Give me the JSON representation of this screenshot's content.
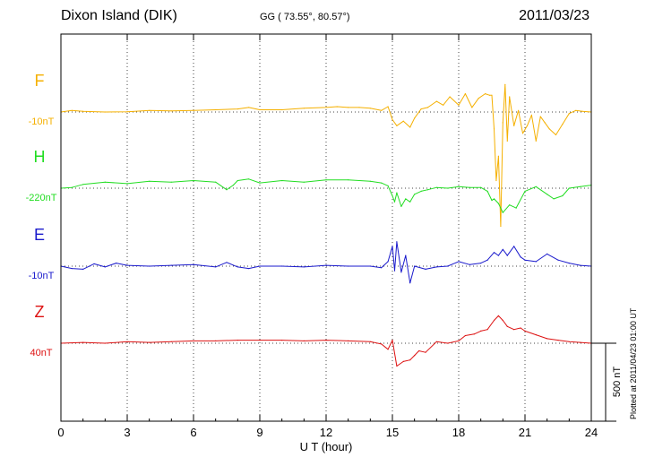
{
  "header": {
    "station": "Dixon Island (DIK)",
    "coords": "GG ( 73.55°,  80.57°)",
    "date": "2011/03/23"
  },
  "footer": {
    "plotted": "Plotted at 2011/04/23 01:00 UT"
  },
  "chart_data": {
    "type": "line",
    "title": "Dixon Island (DIK)",
    "xlabel": "U T (hour)",
    "xlim": [
      0,
      24
    ],
    "xticks": [
      "0",
      "3",
      "6",
      "9",
      "12",
      "15",
      "18",
      "21",
      "24"
    ],
    "grid": true,
    "scale_bar": "500 nT",
    "colors": {
      "F": "#f5b000",
      "H": "#22dd22",
      "E": "#1a1acc",
      "Z": "#dd1111"
    },
    "series": [
      {
        "name": "F",
        "baseline_label": "-10nT",
        "x": [
          0,
          0.5,
          1,
          2,
          3,
          4,
          5,
          6,
          7,
          8,
          8.5,
          9,
          10,
          11,
          12,
          12.5,
          13,
          13.5,
          14,
          14.5,
          14.8,
          15,
          15.2,
          15.5,
          15.8,
          16,
          16.3,
          16.6,
          17,
          17.3,
          17.6,
          18,
          18.3,
          18.6,
          18.9,
          19.2,
          19.4,
          19.5,
          19.6,
          19.7,
          19.8,
          19.9,
          20,
          20.1,
          20.2,
          20.3,
          20.5,
          20.7,
          20.9,
          21.1,
          21.3,
          21.5,
          21.7,
          21.9,
          22.1,
          22.4,
          22.7,
          23,
          23.3,
          23.6,
          24
        ],
        "values": [
          -10,
          0,
          -5,
          -10,
          -8,
          0,
          -3,
          0,
          5,
          10,
          20,
          5,
          5,
          15,
          20,
          25,
          20,
          20,
          15,
          0,
          25,
          -60,
          -100,
          -70,
          -110,
          -50,
          10,
          20,
          60,
          35,
          90,
          35,
          110,
          20,
          80,
          110,
          100,
          100,
          -120,
          -460,
          -300,
          -760,
          -80,
          170,
          -200,
          90,
          -100,
          0,
          -150,
          -100,
          -30,
          -200,
          -40,
          -80,
          -120,
          -160,
          -90,
          -20,
          0,
          -5,
          -10
        ]
      },
      {
        "name": "H",
        "baseline_label": "-220nT",
        "x": [
          0,
          0.5,
          1,
          2,
          3,
          4,
          5,
          6,
          7,
          7.5,
          7.8,
          8,
          8.5,
          9,
          10,
          11,
          12,
          13,
          14,
          14.5,
          14.8,
          15,
          15.1,
          15.2,
          15.4,
          15.6,
          15.8,
          16,
          16.3,
          16.6,
          17,
          17.5,
          18,
          18.5,
          19,
          19.3,
          19.5,
          19.6,
          19.8,
          20,
          20.3,
          20.6,
          21,
          21.5,
          22,
          22.3,
          22.7,
          23,
          23.5,
          24
        ],
        "values": [
          -220,
          -215,
          -195,
          -180,
          -190,
          -175,
          -180,
          -170,
          -180,
          -230,
          -200,
          -170,
          -160,
          -185,
          -170,
          -180,
          -165,
          -165,
          -175,
          -185,
          -205,
          -270,
          -310,
          -250,
          -340,
          -290,
          -310,
          -260,
          -240,
          -230,
          -215,
          -220,
          -210,
          -215,
          -215,
          -240,
          -300,
          -290,
          -320,
          -380,
          -330,
          -350,
          -240,
          -210,
          -260,
          -290,
          -270,
          -220,
          -210,
          -200
        ]
      },
      {
        "name": "E",
        "baseline_label": "-10nT",
        "x": [
          0,
          0.5,
          1,
          1.5,
          2,
          2.5,
          3,
          4,
          5,
          6,
          7,
          7.5,
          8,
          8.5,
          9,
          10,
          11,
          12,
          13,
          14,
          14.5,
          14.8,
          15,
          15.1,
          15.2,
          15.4,
          15.6,
          15.8,
          16,
          16.5,
          17,
          17.5,
          18,
          18.5,
          19,
          19.3,
          19.6,
          19.8,
          20,
          20.2,
          20.5,
          20.8,
          21,
          21.5,
          22,
          22.5,
          23,
          23.5,
          24
        ],
        "values": [
          -10,
          -25,
          -30,
          5,
          -15,
          10,
          -5,
          -10,
          -5,
          0,
          -15,
          15,
          -15,
          -25,
          -10,
          -10,
          -15,
          -5,
          -10,
          -10,
          -20,
          20,
          120,
          -40,
          150,
          -50,
          60,
          -120,
          -10,
          -30,
          -15,
          -10,
          20,
          0,
          10,
          30,
          80,
          60,
          100,
          60,
          120,
          50,
          30,
          20,
          70,
          30,
          10,
          -5,
          -10
        ]
      },
      {
        "name": "Z",
        "baseline_label": "40nT",
        "x": [
          0,
          1,
          2,
          3,
          4,
          5,
          6,
          7,
          8,
          9,
          10,
          11,
          12,
          13,
          14,
          14.5,
          14.8,
          15,
          15.2,
          15.5,
          15.8,
          16,
          16.2,
          16.5,
          17,
          17.5,
          18,
          18.3,
          18.7,
          19,
          19.3,
          19.6,
          19.8,
          20,
          20.2,
          20.5,
          20.8,
          21,
          21.5,
          22,
          22.5,
          23,
          23.5,
          24
        ],
        "values": [
          40,
          45,
          40,
          50,
          45,
          50,
          55,
          55,
          60,
          60,
          60,
          55,
          60,
          55,
          50,
          35,
          0,
          60,
          -110,
          -80,
          -70,
          -40,
          -10,
          -20,
          50,
          40,
          55,
          90,
          100,
          120,
          130,
          190,
          220,
          190,
          150,
          130,
          140,
          120,
          95,
          70,
          60,
          50,
          45,
          40
        ]
      }
    ]
  }
}
